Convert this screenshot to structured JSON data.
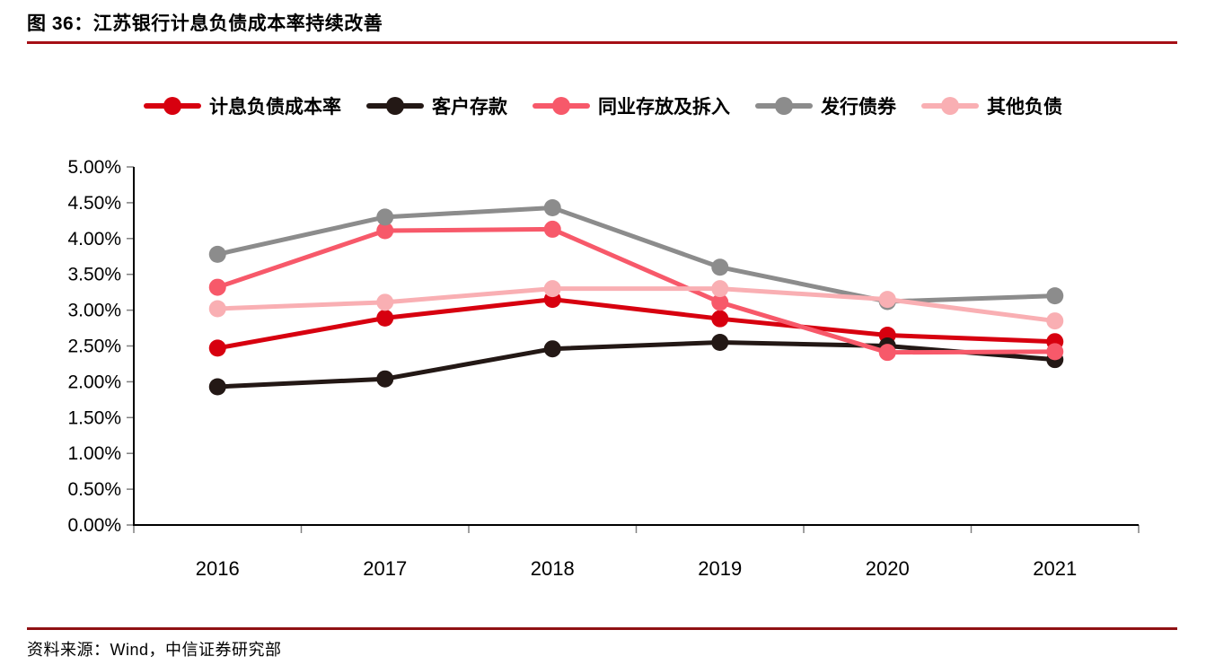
{
  "figure": {
    "title": "图 36：江苏银行计息负债成本率持续改善",
    "source": "资料来源：Wind，中信证券研究部"
  },
  "colors": {
    "title_rule": "#a50f15",
    "source_rule": "#8f1114",
    "axis": "#000000",
    "tick": "#808080",
    "label_text": "#000000"
  },
  "chart_data": {
    "type": "line",
    "title": "",
    "xlabel": "",
    "ylabel": "",
    "categories": [
      "2016",
      "2017",
      "2018",
      "2019",
      "2020",
      "2021"
    ],
    "series": [
      {
        "name": "计息负债成本率",
        "color": "#d7000f",
        "values": [
          2.47,
          2.89,
          3.15,
          2.88,
          2.65,
          2.56
        ]
      },
      {
        "name": "客户存款",
        "color": "#231815",
        "values": [
          1.93,
          2.04,
          2.46,
          2.55,
          2.5,
          2.31
        ]
      },
      {
        "name": "同业存放及拆入",
        "color": "#f7596a",
        "values": [
          3.32,
          4.11,
          4.13,
          3.11,
          2.41,
          2.42
        ]
      },
      {
        "name": "发行债券",
        "color": "#8c8c8c",
        "values": [
          3.78,
          4.3,
          4.43,
          3.6,
          3.12,
          3.2
        ]
      },
      {
        "name": "其他负债",
        "color": "#f9afb3",
        "values": [
          3.02,
          3.11,
          3.3,
          3.3,
          3.15,
          2.85
        ]
      }
    ],
    "ylim": [
      0,
      5
    ],
    "ytick_step": 0.5,
    "yticks": [
      "0.00%",
      "0.50%",
      "1.00%",
      "1.50%",
      "2.00%",
      "2.50%",
      "3.00%",
      "3.50%",
      "4.00%",
      "4.50%",
      "5.00%"
    ],
    "legend_position": "top",
    "grid": false,
    "marker": "circle"
  }
}
